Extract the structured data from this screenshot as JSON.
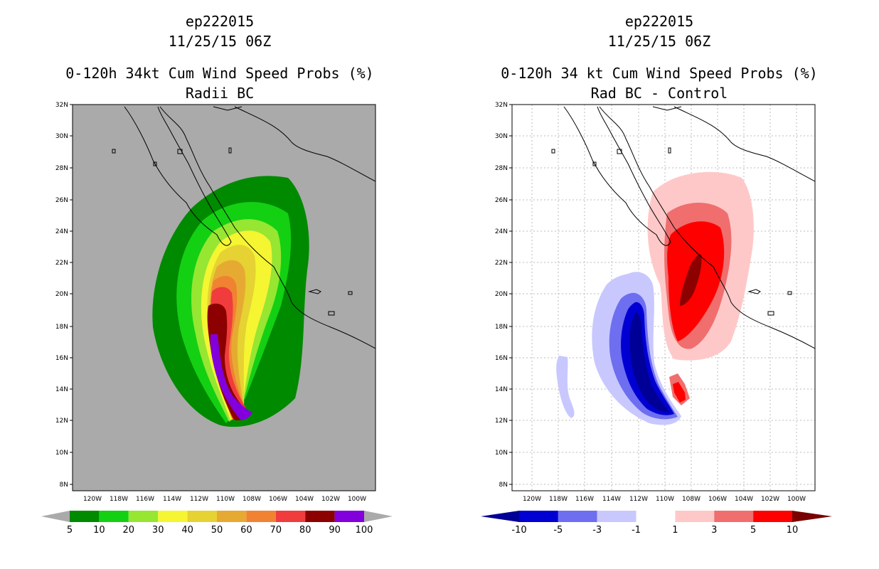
{
  "left": {
    "storm_id": "ep222015",
    "datetime": "11/25/15 06Z",
    "product": "0-120h 34kt Cum Wind Speed Probs (%)",
    "subtitle": "Radii BC",
    "lat_labels": [
      "32N",
      "30N",
      "28N",
      "26N",
      "24N",
      "22N",
      "20N",
      "18N",
      "16N",
      "14N",
      "12N",
      "10N",
      "8N"
    ],
    "lon_labels": [
      "120W",
      "118W",
      "116W",
      "114W",
      "112W",
      "110W",
      "108W",
      "106W",
      "104W",
      "102W",
      "100W"
    ],
    "colorbar": {
      "colors": [
        "#008a00",
        "#13d013",
        "#96e632",
        "#f5f532",
        "#e6d232",
        "#e6aa32",
        "#f08232",
        "#f03c3c",
        "#8c0000",
        "#8200dc"
      ],
      "end_color": "#aaaaaa",
      "labels": [
        "5",
        "10",
        "20",
        "30",
        "40",
        "50",
        "60",
        "70",
        "80",
        "90",
        "100"
      ]
    }
  },
  "right": {
    "storm_id": "ep222015",
    "datetime": "11/25/15 06Z",
    "product": "0-120h 34 kt Cum Wind Speed Probs (%)",
    "subtitle": "Rad BC - Control",
    "lat_labels": [
      "32N",
      "30N",
      "28N",
      "26N",
      "24N",
      "22N",
      "20N",
      "18N",
      "16N",
      "14N",
      "12N",
      "10N",
      "8N"
    ],
    "lon_labels": [
      "120W",
      "118W",
      "116W",
      "114W",
      "112W",
      "110W",
      "108W",
      "106W",
      "104W",
      "102W",
      "100W"
    ],
    "colorbar": {
      "colors": [
        "#0000d2",
        "#6e6ef0",
        "#c8c8ff",
        "#ffffff",
        "#ffc8c8",
        "#f06e6e",
        "#ff0000"
      ],
      "end_low": "#000096",
      "end_high": "#780000",
      "labels": [
        "-10",
        "-5",
        "-3",
        "-1",
        "1",
        "3",
        "5",
        "10"
      ]
    }
  },
  "colors": {
    "ocean_bg": "#aaaaaa",
    "coast": "#000000",
    "grid": "#bbbbbb"
  }
}
